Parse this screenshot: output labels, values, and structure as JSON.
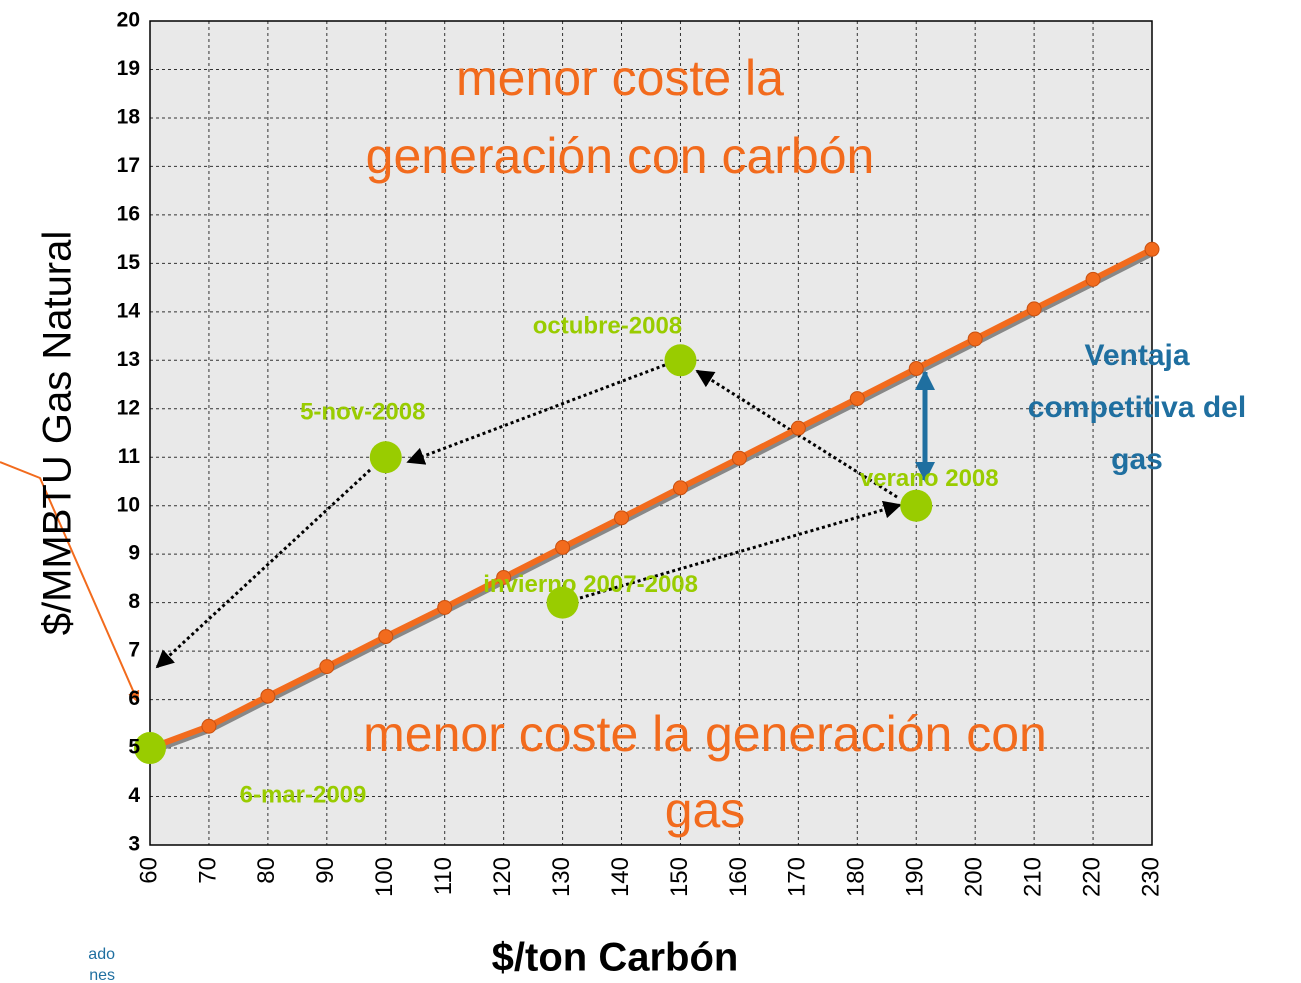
{
  "chart_data": {
    "type": "line",
    "xlabel": "$/ton Carbón",
    "ylabel": "$/MMBTU Gas Natural",
    "x": [
      60,
      70,
      80,
      90,
      100,
      110,
      120,
      130,
      140,
      150,
      160,
      170,
      180,
      190,
      200,
      210,
      220,
      230
    ],
    "series": [
      {
        "color": "#f26b1d",
        "values": [
          5.0,
          5.45,
          6.07,
          6.68,
          7.3,
          7.9,
          8.52,
          9.14,
          9.75,
          10.37,
          10.98,
          11.6,
          12.21,
          12.83,
          13.44,
          14.06,
          14.67,
          15.29
        ]
      }
    ],
    "points": {
      "color": "#99cc00",
      "x": [
        60,
        100,
        150,
        190,
        130
      ],
      "y": [
        5,
        11,
        13,
        10,
        8
      ],
      "labels": [
        "6-mar-2009",
        "5-nov-2008",
        "octubre-2008",
        "verano 2008",
        "invierno 2007-2008"
      ]
    },
    "annotations": [
      {
        "color": "#f26b1d",
        "lines": [
          "menor coste la",
          "generación con carbón"
        ]
      },
      {
        "color": "#f26b1d",
        "lines": [
          "menor coste la generación con",
          "gas"
        ]
      },
      {
        "color": "#1f6fa0",
        "lines": [
          "Ventaja",
          "competitiva del",
          "gas"
        ]
      }
    ],
    "xlim": [
      60,
      230
    ],
    "ylim": [
      3,
      20
    ],
    "xticks": [
      60,
      70,
      80,
      90,
      100,
      110,
      120,
      130,
      140,
      150,
      160,
      170,
      180,
      190,
      200,
      210,
      220,
      230
    ],
    "yticks": [
      3,
      4,
      5,
      6,
      7,
      8,
      9,
      10,
      11,
      12,
      13,
      14,
      15,
      16,
      17,
      18,
      19,
      20
    ],
    "grid": true
  },
  "notes": [
    "ado",
    "nes"
  ]
}
